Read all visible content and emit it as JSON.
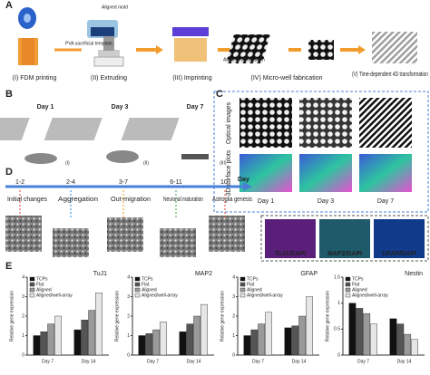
{
  "panel_a": {
    "label": "A",
    "notes": [
      "Aligned mold",
      "PVA sacrificial template",
      "Aligned micropattern"
    ],
    "steps": [
      "(I) FDM printing",
      "(II) Extruding",
      "(III) Imprinting",
      "(IV) Micro-well fabrication",
      "(V) Time-dependent 4D transformation"
    ]
  },
  "panel_b": {
    "label": "B",
    "days": [
      "Day 1",
      "Day 3",
      "Day 7"
    ],
    "views": [
      "(I)",
      "(II)",
      "(III)"
    ]
  },
  "panel_c": {
    "label": "C",
    "rows": [
      "Optical images",
      "3D surface plots"
    ],
    "days": [
      "Day 1",
      "Day 3",
      "Day 7"
    ]
  },
  "panel_d": {
    "label": "D",
    "axis": "Day",
    "ranges": [
      "1-2",
      "2-4",
      "3-7",
      "6-11",
      "10-"
    ],
    "stages": [
      {
        "name": "Initial changes",
        "color": "#e53935"
      },
      {
        "name": "Aggregation",
        "color": "#1e88e5"
      },
      {
        "name": "Out-migration",
        "color": "#f59b00"
      },
      {
        "name": "Neuronal maturation",
        "color": "#43a047"
      },
      {
        "name": "Astroglia genesis",
        "color": "#e53935"
      }
    ],
    "stains": [
      {
        "name": "TuJ1/DAPI",
        "color": "#d81b60"
      },
      {
        "name": "MAP2/DAPI",
        "color": "#2e9e4f"
      },
      {
        "name": "GFAP/DAPI",
        "color": "#1e6fd9"
      }
    ]
  },
  "panel_e": {
    "label": "E"
  },
  "chart_data": [
    {
      "type": "bar",
      "title": "TuJ1",
      "y_label": "Relative gene expression",
      "categories": [
        "Day 7",
        "Day 14"
      ],
      "series": [
        {
          "name": "TCPs",
          "color": "#111111",
          "values": [
            1.0,
            1.3
          ]
        },
        {
          "name": "Flat",
          "color": "#555555",
          "values": [
            1.2,
            1.8
          ]
        },
        {
          "name": "Aligned",
          "color": "#9a9a9a",
          "values": [
            1.6,
            2.3
          ]
        },
        {
          "name": "Aligned/well-array",
          "color": "#e6e6e6",
          "values": [
            2.0,
            3.2
          ]
        }
      ],
      "ylim": [
        0,
        4
      ],
      "yticks": [
        0,
        1,
        2,
        3,
        4
      ]
    },
    {
      "type": "bar",
      "title": "MAP2",
      "y_label": "Relative gene expression",
      "categories": [
        "Day 7",
        "Day 14"
      ],
      "series": [
        {
          "name": "TCPs",
          "color": "#111111",
          "values": [
            1.0,
            1.2
          ]
        },
        {
          "name": "Flat",
          "color": "#555555",
          "values": [
            1.1,
            1.6
          ]
        },
        {
          "name": "Aligned",
          "color": "#9a9a9a",
          "values": [
            1.3,
            2.0
          ]
        },
        {
          "name": "Aligned/well-array",
          "color": "#e6e6e6",
          "values": [
            1.7,
            2.6
          ]
        }
      ],
      "ylim": [
        0,
        4
      ],
      "yticks": [
        0,
        1,
        2,
        3,
        4
      ]
    },
    {
      "type": "bar",
      "title": "GFAP",
      "y_label": "Relative gene expression",
      "categories": [
        "Day 7",
        "Day 14"
      ],
      "series": [
        {
          "name": "TCPs",
          "color": "#111111",
          "values": [
            1.0,
            1.4
          ]
        },
        {
          "name": "Flat",
          "color": "#555555",
          "values": [
            1.3,
            1.5
          ]
        },
        {
          "name": "Aligned",
          "color": "#9a9a9a",
          "values": [
            1.6,
            2.0
          ]
        },
        {
          "name": "Aligned/well-array",
          "color": "#e6e6e6",
          "values": [
            2.2,
            3.0
          ]
        }
      ],
      "ylim": [
        0,
        4
      ],
      "yticks": [
        0,
        1,
        2,
        3,
        4
      ]
    },
    {
      "type": "bar",
      "title": "Nestin",
      "y_label": "Relative gene expression",
      "categories": [
        "Day 7",
        "Day 14"
      ],
      "series": [
        {
          "name": "TCPs",
          "color": "#111111",
          "values": [
            1.0,
            0.7
          ]
        },
        {
          "name": "Flat",
          "color": "#555555",
          "values": [
            0.9,
            0.6
          ]
        },
        {
          "name": "Aligned",
          "color": "#9a9a9a",
          "values": [
            0.8,
            0.4
          ]
        },
        {
          "name": "Aligned/well-array",
          "color": "#e6e6e6",
          "values": [
            0.6,
            0.3
          ]
        }
      ],
      "ylim": [
        0,
        1.5
      ],
      "yticks": [
        0,
        0.5,
        1,
        1.5
      ]
    }
  ]
}
